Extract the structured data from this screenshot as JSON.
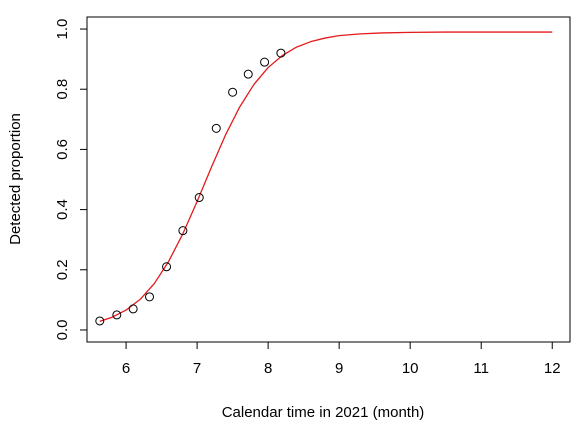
{
  "chart_data": {
    "type": "scatter",
    "title": "",
    "xlabel": "Calendar time in 2021 (month)",
    "ylabel": "Detected proportion",
    "xlim": [
      5.6,
      12
    ],
    "ylim": [
      0.0,
      1.0
    ],
    "x_ticks": [
      6,
      7,
      8,
      9,
      10,
      11,
      12
    ],
    "y_ticks": [
      0.0,
      0.2,
      0.4,
      0.6,
      0.8,
      1.0
    ],
    "x_tick_labels": [
      "6",
      "7",
      "8",
      "9",
      "10",
      "11",
      "12"
    ],
    "y_tick_labels": [
      "0.0",
      "0.2",
      "0.4",
      "0.6",
      "0.8",
      "1.0"
    ],
    "grid": false,
    "legend": "none",
    "colors": {
      "points": "#000000",
      "curve": "#e41a1c"
    },
    "series": [
      {
        "kind": "points",
        "x": [
          5.63,
          5.87,
          6.1,
          6.33,
          6.57,
          6.8,
          7.03,
          7.27,
          7.5,
          7.72,
          7.95,
          8.18
        ],
        "y": [
          0.03,
          0.05,
          0.07,
          0.11,
          0.21,
          0.33,
          0.44,
          0.67,
          0.79,
          0.85,
          0.89,
          0.92
        ]
      },
      {
        "kind": "fitted-curve",
        "x": [
          5.63,
          5.8,
          6.0,
          6.2,
          6.4,
          6.6,
          6.8,
          7.0,
          7.2,
          7.4,
          7.6,
          7.8,
          8.0,
          8.2,
          8.4,
          8.6,
          8.8,
          9.0,
          9.3,
          9.6,
          10.0,
          10.5,
          11.0,
          11.5,
          12.0
        ],
        "y": [
          0.029,
          0.042,
          0.066,
          0.102,
          0.155,
          0.228,
          0.32,
          0.427,
          0.54,
          0.648,
          0.741,
          0.816,
          0.872,
          0.912,
          0.94,
          0.958,
          0.97,
          0.978,
          0.984,
          0.987,
          0.989,
          0.99,
          0.99,
          0.99,
          0.99
        ]
      }
    ]
  }
}
